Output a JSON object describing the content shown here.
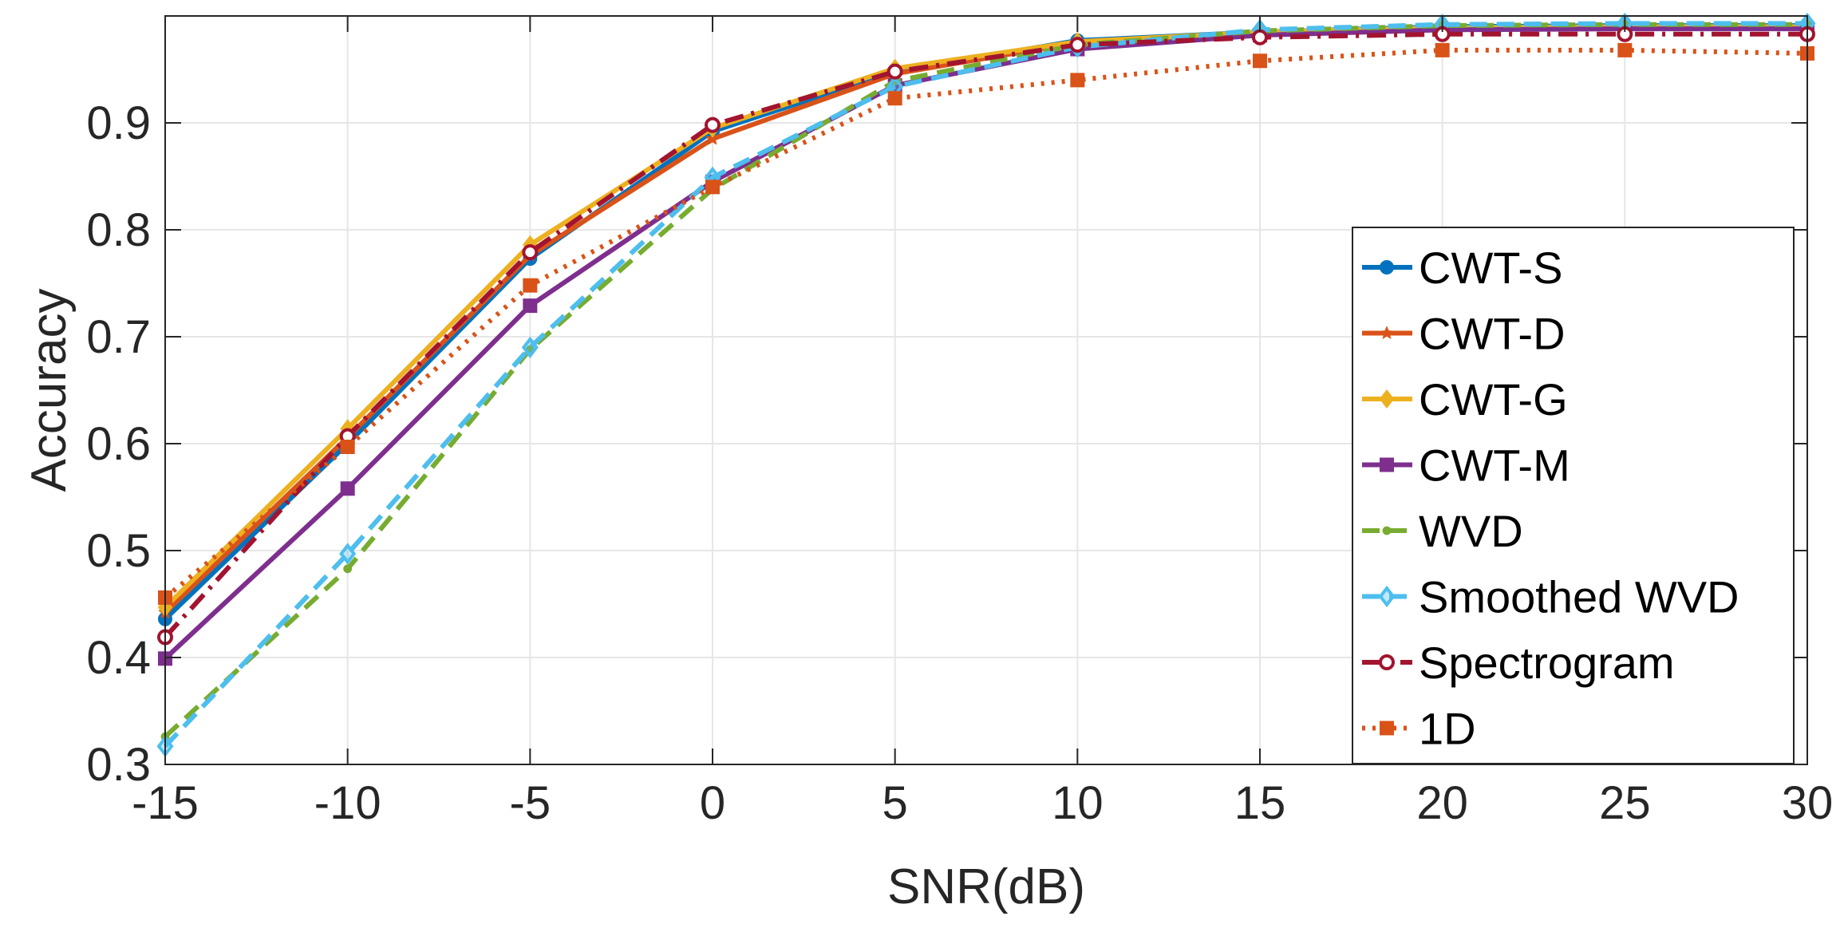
{
  "chart_data": {
    "type": "line",
    "title": "",
    "xlabel": "SNR(dB)",
    "ylabel": "Accuracy",
    "x": [
      -15,
      -10,
      -5,
      0,
      5,
      10,
      15,
      20,
      25,
      30
    ],
    "xlim": [
      -15,
      30
    ],
    "ylim": [
      0.3,
      1.0
    ],
    "xticks": [
      "-15",
      "-10",
      "-5",
      "0",
      "5",
      "10",
      "15",
      "20",
      "25",
      "30"
    ],
    "yticks": [
      "0.3",
      "0.4",
      "0.5",
      "0.6",
      "0.7",
      "0.8",
      "0.9"
    ],
    "ytick_values": [
      0.3,
      0.4,
      0.5,
      0.6,
      0.7,
      0.8,
      0.9
    ],
    "grid": true,
    "legend_position": "bottom-right",
    "series": [
      {
        "name": "CWT-S",
        "color": "#0072BD",
        "line": "solid",
        "marker": "circle-filled",
        "values": [
          0.436,
          0.6,
          0.773,
          0.892,
          0.948,
          0.977,
          0.985,
          0.99,
          0.991,
          0.991
        ]
      },
      {
        "name": "CWT-D",
        "color": "#D95319",
        "line": "solid",
        "marker": "star",
        "values": [
          0.442,
          0.606,
          0.776,
          0.885,
          0.946,
          0.975,
          0.984,
          0.988,
          0.989,
          0.989
        ]
      },
      {
        "name": "CWT-G",
        "color": "#EDB120",
        "line": "solid",
        "marker": "diamond",
        "values": [
          0.447,
          0.614,
          0.786,
          0.895,
          0.951,
          0.976,
          0.985,
          0.989,
          0.99,
          0.99
        ]
      },
      {
        "name": "CWT-M",
        "color": "#7E2F8E",
        "line": "solid",
        "marker": "square",
        "values": [
          0.399,
          0.558,
          0.729,
          0.845,
          0.935,
          0.969,
          0.982,
          0.987,
          0.988,
          0.988
        ]
      },
      {
        "name": "WVD",
        "color": "#77AC30",
        "line": "dashed",
        "marker": "dot",
        "values": [
          0.326,
          0.483,
          0.688,
          0.838,
          0.939,
          0.973,
          0.986,
          0.991,
          0.992,
          0.992
        ]
      },
      {
        "name": "Smoothed WVD",
        "color": "#4DBEEE",
        "line": "dashed",
        "marker": "diamond-open",
        "values": [
          0.317,
          0.497,
          0.69,
          0.849,
          0.934,
          0.971,
          0.987,
          0.992,
          0.993,
          0.993
        ]
      },
      {
        "name": "Spectrogram",
        "color": "#A2142F",
        "line": "dashdot",
        "marker": "circle-open",
        "values": [
          0.419,
          0.607,
          0.779,
          0.898,
          0.948,
          0.973,
          0.98,
          0.983,
          0.983,
          0.983
        ]
      },
      {
        "name": "1D",
        "color": "#D95319",
        "line": "dotted",
        "marker": "square",
        "values": [
          0.456,
          0.597,
          0.748,
          0.84,
          0.923,
          0.94,
          0.958,
          0.968,
          0.968,
          0.965
        ]
      }
    ]
  }
}
